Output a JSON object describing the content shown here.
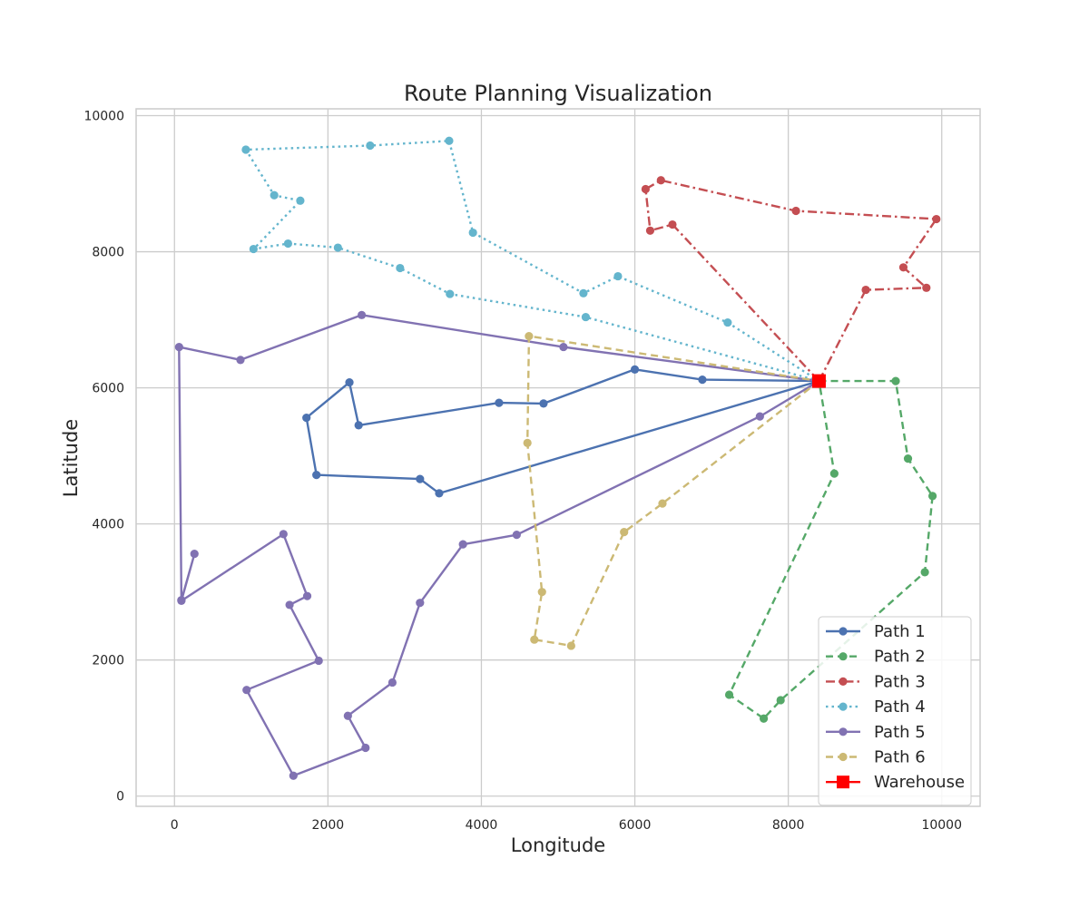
{
  "chart_data": {
    "type": "line",
    "title": "Route Planning Visualization",
    "xlabel": "Longitude",
    "ylabel": "Latitude",
    "xlim": [
      -500,
      10500
    ],
    "ylim": [
      -150,
      10100
    ],
    "xticks": [
      0,
      2000,
      4000,
      6000,
      8000,
      10000
    ],
    "yticks": [
      0,
      2000,
      4000,
      6000,
      8000,
      10000
    ],
    "grid": true,
    "legend_position": "lower-right",
    "warehouse": {
      "name": "Warehouse",
      "x": 8400,
      "y": 6100,
      "color": "#ff0000",
      "marker": "square"
    },
    "series": [
      {
        "name": "Path 1",
        "color": "#4c72b0",
        "style": "solid",
        "points": [
          [
            8400,
            6100
          ],
          [
            6880,
            6120
          ],
          [
            6000,
            6270
          ],
          [
            4810,
            5770
          ],
          [
            4230,
            5780
          ],
          [
            2400,
            5450
          ],
          [
            2280,
            6080
          ],
          [
            1720,
            5560
          ],
          [
            1850,
            4720
          ],
          [
            3200,
            4660
          ],
          [
            3450,
            4450
          ],
          [
            8400,
            6100
          ]
        ]
      },
      {
        "name": "Path 2",
        "color": "#55a868",
        "style": "dashed",
        "points": [
          [
            8400,
            6100
          ],
          [
            9400,
            6100
          ],
          [
            9560,
            4960
          ],
          [
            9880,
            4410
          ],
          [
            9780,
            3290
          ],
          [
            7900,
            1410
          ],
          [
            7680,
            1140
          ],
          [
            7230,
            1490
          ],
          [
            8600,
            4740
          ],
          [
            8400,
            6100
          ]
        ]
      },
      {
        "name": "Path 3",
        "color": "#c44e52",
        "style": "dashdot",
        "points": [
          [
            8400,
            6100
          ],
          [
            9010,
            7440
          ],
          [
            9800,
            7470
          ],
          [
            9500,
            7770
          ],
          [
            9930,
            8480
          ],
          [
            8100,
            8600
          ],
          [
            6340,
            9050
          ],
          [
            6140,
            8920
          ],
          [
            6200,
            8310
          ],
          [
            6490,
            8400
          ],
          [
            8400,
            6100
          ]
        ]
      },
      {
        "name": "Path 4",
        "color": "#64b5cd",
        "style": "dotted",
        "points": [
          [
            8400,
            6100
          ],
          [
            7210,
            6960
          ],
          [
            5780,
            7640
          ],
          [
            5330,
            7390
          ],
          [
            3890,
            8280
          ],
          [
            3580,
            9630
          ],
          [
            2550,
            9560
          ],
          [
            930,
            9500
          ],
          [
            1300,
            8830
          ],
          [
            1640,
            8750
          ],
          [
            1030,
            8040
          ],
          [
            1480,
            8120
          ],
          [
            2130,
            8060
          ],
          [
            2940,
            7760
          ],
          [
            3590,
            7380
          ],
          [
            5360,
            7040
          ],
          [
            8400,
            6100
          ]
        ]
      },
      {
        "name": "Path 5",
        "color": "#8172b2",
        "style": "solid",
        "points": [
          [
            8400,
            6100
          ],
          [
            5070,
            6600
          ],
          [
            2440,
            7070
          ],
          [
            860,
            6410
          ],
          [
            60,
            6600
          ],
          [
            90,
            2880
          ],
          [
            260,
            3560
          ],
          [
            90,
            2870
          ],
          [
            1420,
            3850
          ],
          [
            1730,
            2940
          ],
          [
            1500,
            2810
          ],
          [
            1880,
            1990
          ],
          [
            940,
            1560
          ],
          [
            1550,
            300
          ],
          [
            2490,
            710
          ],
          [
            2260,
            1180
          ],
          [
            2840,
            1670
          ],
          [
            3200,
            2840
          ],
          [
            3760,
            3700
          ],
          [
            4460,
            3840
          ],
          [
            7630,
            5580
          ],
          [
            8400,
            6100
          ]
        ]
      },
      {
        "name": "Path 6",
        "color": "#ccb974",
        "style": "dashed",
        "points": [
          [
            8400,
            6100
          ],
          [
            6360,
            4300
          ],
          [
            5860,
            3880
          ],
          [
            5170,
            2210
          ],
          [
            4690,
            2300
          ],
          [
            4790,
            3000
          ],
          [
            4600,
            5190
          ],
          [
            4620,
            6760
          ],
          [
            8400,
            6100
          ]
        ]
      }
    ]
  }
}
